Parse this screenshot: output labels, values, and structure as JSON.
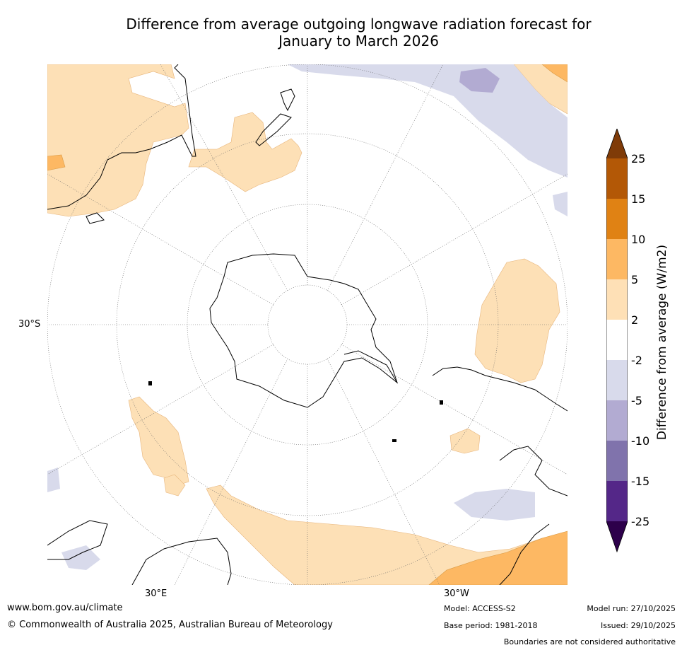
{
  "title_line1": "Difference from average outgoing longwave radiation forecast for",
  "title_line2": "January to March 2026",
  "axis_labels": {
    "lat": "30°S",
    "lon_east": "30°E",
    "lon_west": "30°W"
  },
  "colorbar": {
    "title": "Difference from average (W/m2)",
    "ticks": [
      "25",
      "15",
      "10",
      "5",
      "2",
      "-2",
      "-5",
      "-10",
      "-15",
      "-25"
    ],
    "colors": {
      "gt25": "#7f3b08",
      "15to25": "#b35806",
      "10to15": "#e08214",
      "5to10": "#fdb863",
      "2to5": "#fee0b6",
      "neutral": "#ffffff",
      "m2tom5": "#d8daeb",
      "m5tom10": "#b2abd2",
      "m10tom15": "#8073ac",
      "m15tom25": "#542788",
      "ltm25": "#2d004b"
    }
  },
  "footer": {
    "website": "www.bom.gov.au/climate",
    "copyright": "© Commonwealth of Australia 2025, Australian Bureau of Meteorology",
    "model": "Model: ACCESS-S2",
    "base_period": "Base period: 1981-2018",
    "model_run": "Model run: 27/10/2025",
    "issued": "Issued: 29/10/2025",
    "disclaimer": "Boundaries are not considered authoritative"
  }
}
